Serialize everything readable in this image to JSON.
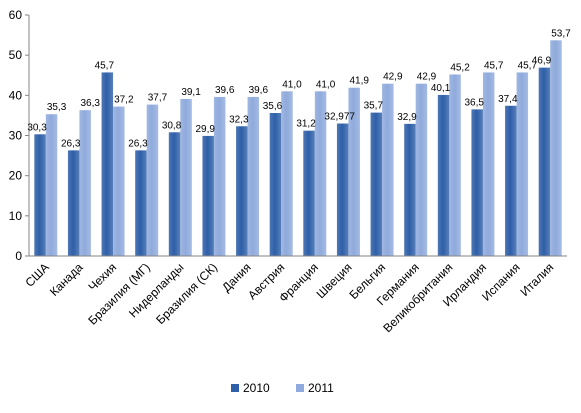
{
  "chart_data": {
    "type": "bar",
    "categories": [
      "США",
      "Канада",
      "Чехия",
      "Бразилия (МГ)",
      "Нидерланды",
      "Бразилия (СК)",
      "Дания",
      "Австрия",
      "Франция",
      "Швеция",
      "Бельгия",
      "Германия",
      "Великобритания",
      "Ирландия",
      "Испания",
      "Италия"
    ],
    "series": [
      {
        "name": "2010",
        "color": "#2E5FA8",
        "values": [
          30.3,
          26.3,
          45.7,
          26.3,
          30.8,
          29.9,
          32.3,
          35.6,
          31.2,
          32.977,
          35.7,
          32.9,
          40.1,
          36.5,
          37.4,
          46.9
        ],
        "labels": [
          "30,3",
          "26,3",
          "45,7",
          "26,3",
          "30,8",
          "29,9",
          "32,3",
          "35,6",
          "31,2",
          "32,977",
          "35,7",
          "32,9",
          "40,1",
          "36,5",
          "37,4",
          "46,9"
        ]
      },
      {
        "name": "2011",
        "color": "#8FAADC",
        "values": [
          35.3,
          36.3,
          37.2,
          37.7,
          39.1,
          39.6,
          39.6,
          41.0,
          41.0,
          41.9,
          42.9,
          42.9,
          45.2,
          45.7,
          45.7,
          53.7
        ],
        "labels": [
          "35,3",
          "36,3",
          "37,2",
          "37,7",
          "39,1",
          "39,6",
          "39,6",
          "41,0",
          "41,0",
          "41,9",
          "42,9",
          "42,9",
          "45,2",
          "45,7",
          "45,7",
          "53,7"
        ]
      }
    ],
    "yticks": [
      "0",
      "10",
      "20",
      "30",
      "40",
      "50",
      "60"
    ],
    "ylim": [
      0,
      60
    ],
    "grid": false,
    "legend": "bottom"
  }
}
